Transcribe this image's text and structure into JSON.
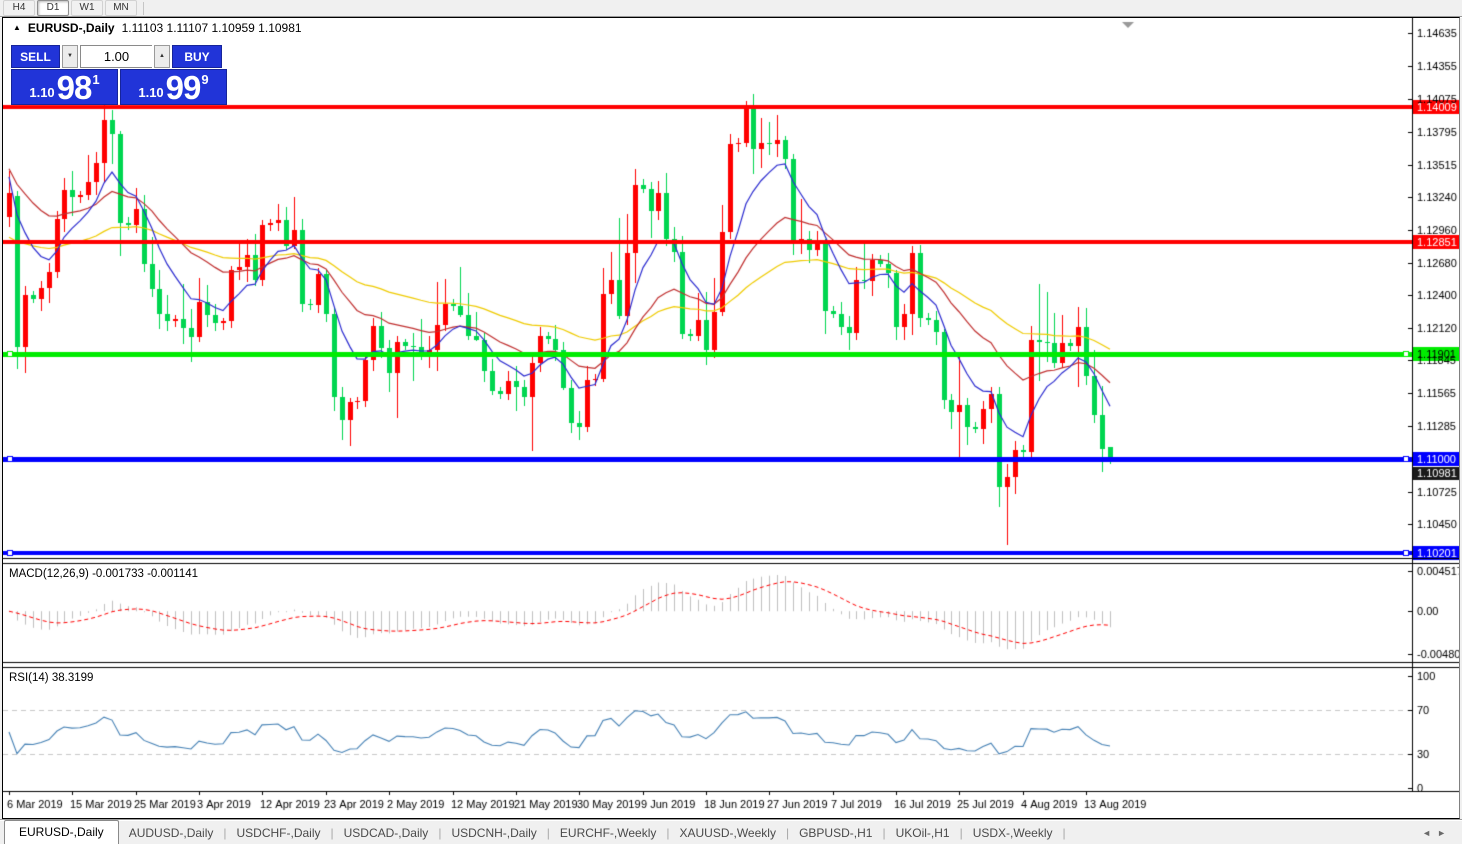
{
  "toolbar": {
    "timeframes": [
      {
        "label": "H4",
        "active": false
      },
      {
        "label": "D1",
        "active": true
      },
      {
        "label": "W1",
        "active": false
      },
      {
        "label": "MN",
        "active": false
      }
    ]
  },
  "chart": {
    "title_symbol": "EURUSD-,Daily",
    "title_ohlc": "1.11103 1.11107 1.10959 1.10981",
    "collapse_arrow_glyph": "▲",
    "trade_panel": {
      "sell_label": "SELL",
      "buy_label": "BUY",
      "volume": "1.00",
      "volume_down_glyph": "▼",
      "volume_up_glyph": "▲",
      "sell_price": {
        "prefix": "1.10",
        "big": "98",
        "sup": "1"
      },
      "buy_price": {
        "prefix": "1.10",
        "big": "99",
        "sup": "9"
      },
      "panel_color": "#2134d8"
    }
  },
  "chart_data": {
    "type": "candlestick",
    "symbol": "EURUSD-,Daily",
    "up_color": "#FF0000",
    "down_color": "#00D650",
    "ylim": [
      1.10175,
      1.1475
    ],
    "price_axis_ticks": [
      1.14635,
      1.14355,
      1.14075,
      1.13795,
      1.13515,
      1.1324,
      1.1296,
      1.1268,
      1.124,
      1.1212,
      1.11845,
      1.11565,
      1.11285,
      1.10725,
      1.1045
    ],
    "hlines": [
      {
        "price": 1.14009,
        "color": "#FF0000",
        "width": 4,
        "label": "1.14009",
        "text_color": "#FFFFFF",
        "markers": false
      },
      {
        "price": 1.12851,
        "color": "#FF0000",
        "width": 4,
        "label": "1.12851",
        "text_color": "#FFFFFF",
        "markers": false
      },
      {
        "price": 1.11901,
        "color": "#00EC00",
        "width": 5,
        "label": "1.11901",
        "text_color": "#000000",
        "markers": true
      },
      {
        "price": 1.11,
        "color": "#0000FF",
        "width": 5,
        "label": "1.11000",
        "text_color": "#FFFFFF",
        "markers": true
      },
      {
        "price": 1.10201,
        "color": "#0000FF",
        "width": 4,
        "label": "1.10201",
        "text_color": "#FFFFFF",
        "markers": true
      }
    ],
    "bid_label": {
      "text": "1.10981",
      "bg": "#1a1a1a",
      "text_color": "#FFFFFF"
    },
    "x_labels": [
      {
        "i": 0,
        "text": "6 Mar 2019"
      },
      {
        "i": 8,
        "text": "15 Mar 2019"
      },
      {
        "i": 16,
        "text": "25 Mar 2019"
      },
      {
        "i": 24,
        "text": "3 Apr 2019"
      },
      {
        "i": 32,
        "text": "12 Apr 2019"
      },
      {
        "i": 40,
        "text": "23 Apr 2019"
      },
      {
        "i": 48,
        "text": "2 May 2019"
      },
      {
        "i": 56,
        "text": "12 May 2019"
      },
      {
        "i": 64,
        "text": "21 May 2019"
      },
      {
        "i": 72,
        "text": "30 May 2019"
      },
      {
        "i": 80,
        "text": "9 Jun 2019"
      },
      {
        "i": 88,
        "text": "18 Jun 2019"
      },
      {
        "i": 96,
        "text": "27 Jun 2019"
      },
      {
        "i": 104,
        "text": "7 Jul 2019"
      },
      {
        "i": 112,
        "text": "16 Jul 2019"
      },
      {
        "i": 120,
        "text": "25 Jul 2019"
      },
      {
        "i": 128,
        "text": "4 Aug 2019"
      },
      {
        "i": 136,
        "text": "13 Aug 2019"
      }
    ],
    "ma_lines": [
      {
        "name": "ma-fast",
        "period": 8,
        "seed": 1.1345,
        "color": "#2B2BD0"
      },
      {
        "name": "ma-mid",
        "period": 22,
        "seed": 1.135,
        "color": "#C03030"
      },
      {
        "name": "ma-slow",
        "period": 50,
        "seed": 1.1288,
        "color": "#EFCB00"
      }
    ],
    "macd": {
      "name": "MACD(12,26,9)",
      "values_text": "-0.001733 -0.001141",
      "fast": 12,
      "slow": 26,
      "signal": 9,
      "bar_color": "#C0C0C0",
      "signal_color": "#FF0000",
      "range": [
        -0.004806,
        0.004517
      ],
      "axis_ticks": [
        {
          "v": 0.004517,
          "text": "0.004517"
        },
        {
          "v": 0,
          "text": "0.00"
        },
        {
          "v": -0.004806,
          "text": "-0.004806"
        }
      ]
    },
    "rsi": {
      "name": "RSI(14)",
      "value_text": "38.3199",
      "period": 14,
      "color": "#4581B5",
      "levels": [
        {
          "v": 100,
          "text": "100",
          "dashed": false
        },
        {
          "v": 70,
          "text": "70",
          "dashed": true
        },
        {
          "v": 30,
          "text": "30",
          "dashed": true
        },
        {
          "v": 0,
          "text": "0",
          "dashed": false
        }
      ]
    },
    "candles": [
      [
        1.1307,
        1.1346,
        1.1298,
        1.1327
      ],
      [
        1.1325,
        1.1329,
        1.1177,
        1.1196
      ],
      [
        1.1196,
        1.1248,
        1.1174,
        1.124
      ],
      [
        1.124,
        1.1244,
        1.1234,
        1.1237
      ],
      [
        1.1237,
        1.1252,
        1.1226,
        1.1246
      ],
      [
        1.1246,
        1.1268,
        1.1234,
        1.126
      ],
      [
        1.126,
        1.1312,
        1.1255,
        1.1305
      ],
      [
        1.1305,
        1.134,
        1.1294,
        1.133
      ],
      [
        1.133,
        1.1346,
        1.1308,
        1.1324
      ],
      [
        1.1324,
        1.1329,
        1.1319,
        1.1326
      ],
      [
        1.1326,
        1.136,
        1.1322,
        1.1337
      ],
      [
        1.1337,
        1.1362,
        1.1325,
        1.1353
      ],
      [
        1.1353,
        1.1405,
        1.1336,
        1.139
      ],
      [
        1.139,
        1.1398,
        1.1352,
        1.1378
      ],
      [
        1.1378,
        1.138,
        1.1273,
        1.1302
      ],
      [
        1.1302,
        1.1307,
        1.1296,
        1.13
      ],
      [
        1.13,
        1.1332,
        1.1294,
        1.1314
      ],
      [
        1.1314,
        1.1326,
        1.126,
        1.1267
      ],
      [
        1.1267,
        1.129,
        1.1239,
        1.1245
      ],
      [
        1.1245,
        1.1262,
        1.1212,
        1.1224
      ],
      [
        1.1224,
        1.124,
        1.1209,
        1.1218
      ],
      [
        1.1218,
        1.1223,
        1.1213,
        1.122
      ],
      [
        1.122,
        1.125,
        1.1199,
        1.1212
      ],
      [
        1.1212,
        1.1228,
        1.1183,
        1.1204
      ],
      [
        1.1204,
        1.1255,
        1.12,
        1.1234
      ],
      [
        1.1234,
        1.1249,
        1.1213,
        1.1223
      ],
      [
        1.1223,
        1.1233,
        1.121,
        1.1216
      ],
      [
        1.1216,
        1.1221,
        1.1211,
        1.1218
      ],
      [
        1.1218,
        1.1265,
        1.1212,
        1.1262
      ],
      [
        1.1262,
        1.1285,
        1.1253,
        1.1264
      ],
      [
        1.1264,
        1.1288,
        1.1251,
        1.1274
      ],
      [
        1.1274,
        1.1292,
        1.1248,
        1.1253
      ],
      [
        1.1253,
        1.1304,
        1.1248,
        1.13
      ],
      [
        1.13,
        1.1305,
        1.1295,
        1.1302
      ],
      [
        1.1302,
        1.1318,
        1.1295,
        1.1304
      ],
      [
        1.1304,
        1.1315,
        1.1278,
        1.1282
      ],
      [
        1.1282,
        1.1324,
        1.128,
        1.1296
      ],
      [
        1.1296,
        1.1305,
        1.1226,
        1.1233
      ],
      [
        1.1233,
        1.1237,
        1.1228,
        1.1232
      ],
      [
        1.1232,
        1.1263,
        1.1225,
        1.1258
      ],
      [
        1.1258,
        1.1262,
        1.1218,
        1.1224
      ],
      [
        1.1224,
        1.123,
        1.1141,
        1.1153
      ],
      [
        1.1153,
        1.1162,
        1.1117,
        1.1134
      ],
      [
        1.1134,
        1.1152,
        1.1111,
        1.1149
      ],
      [
        1.1149,
        1.1153,
        1.1143,
        1.115
      ],
      [
        1.115,
        1.119,
        1.1145,
        1.1185
      ],
      [
        1.1185,
        1.1221,
        1.1176,
        1.1214
      ],
      [
        1.1214,
        1.1226,
        1.1187,
        1.1195
      ],
      [
        1.1195,
        1.1202,
        1.1158,
        1.1174
      ],
      [
        1.1174,
        1.1205,
        1.1135,
        1.12
      ],
      [
        1.12,
        1.1203,
        1.1194,
        1.1197
      ],
      [
        1.1197,
        1.1208,
        1.1167,
        1.1196
      ],
      [
        1.1196,
        1.122,
        1.1185,
        1.119
      ],
      [
        1.119,
        1.1205,
        1.1178,
        1.1193
      ],
      [
        1.1193,
        1.1251,
        1.1175,
        1.1215
      ],
      [
        1.1215,
        1.1254,
        1.121,
        1.1233
      ],
      [
        1.1233,
        1.1237,
        1.1227,
        1.1231
      ],
      [
        1.1231,
        1.1264,
        1.1221,
        1.1223
      ],
      [
        1.1223,
        1.1242,
        1.1202,
        1.1205
      ],
      [
        1.1205,
        1.1226,
        1.1201,
        1.1202
      ],
      [
        1.1202,
        1.1208,
        1.1166,
        1.1175
      ],
      [
        1.1175,
        1.1186,
        1.1155,
        1.1158
      ],
      [
        1.1158,
        1.1162,
        1.1152,
        1.1156
      ],
      [
        1.1156,
        1.1175,
        1.115,
        1.1167
      ],
      [
        1.1167,
        1.118,
        1.1142,
        1.1162
      ],
      [
        1.1162,
        1.1168,
        1.1146,
        1.1153
      ],
      [
        1.1153,
        1.1188,
        1.1107,
        1.1182
      ],
      [
        1.1182,
        1.1213,
        1.1175,
        1.1205
      ],
      [
        1.1205,
        1.1209,
        1.1199,
        1.1203
      ],
      [
        1.1203,
        1.1215,
        1.1184,
        1.1193
      ],
      [
        1.1193,
        1.12,
        1.1159,
        1.1161
      ],
      [
        1.1161,
        1.1168,
        1.1123,
        1.1131
      ],
      [
        1.1131,
        1.1141,
        1.1116,
        1.1128
      ],
      [
        1.1128,
        1.118,
        1.1124,
        1.1168
      ],
      [
        1.1168,
        1.1173,
        1.1163,
        1.1169
      ],
      [
        1.1169,
        1.1263,
        1.1166,
        1.1241
      ],
      [
        1.1241,
        1.1277,
        1.1233,
        1.1253
      ],
      [
        1.1253,
        1.1306,
        1.122,
        1.1222
      ],
      [
        1.1222,
        1.1309,
        1.1214,
        1.1276
      ],
      [
        1.1276,
        1.1348,
        1.1251,
        1.1334
      ],
      [
        1.1334,
        1.1339,
        1.1327,
        1.1331
      ],
      [
        1.1331,
        1.1337,
        1.1289,
        1.1312
      ],
      [
        1.1312,
        1.1338,
        1.1305,
        1.1327
      ],
      [
        1.1327,
        1.1344,
        1.1282,
        1.1288
      ],
      [
        1.1288,
        1.1298,
        1.1268,
        1.1277
      ],
      [
        1.1277,
        1.1291,
        1.1203,
        1.1207
      ],
      [
        1.1207,
        1.1211,
        1.1201,
        1.1205
      ],
      [
        1.1205,
        1.1242,
        1.1201,
        1.1219
      ],
      [
        1.1219,
        1.1243,
        1.1181,
        1.1193
      ],
      [
        1.1193,
        1.1255,
        1.1187,
        1.1226
      ],
      [
        1.1226,
        1.1317,
        1.1222,
        1.1294
      ],
      [
        1.1294,
        1.1378,
        1.1288,
        1.1369
      ],
      [
        1.1369,
        1.1374,
        1.1362,
        1.137
      ],
      [
        1.137,
        1.1406,
        1.1367,
        1.14
      ],
      [
        1.14,
        1.1412,
        1.1344,
        1.1365
      ],
      [
        1.1365,
        1.1391,
        1.1348,
        1.137
      ],
      [
        1.137,
        1.1388,
        1.136,
        1.1369
      ],
      [
        1.1369,
        1.1394,
        1.1358,
        1.1373
      ],
      [
        1.1373,
        1.1376,
        1.1348,
        1.1356
      ],
      [
        1.1356,
        1.1361,
        1.1275,
        1.1285
      ],
      [
        1.1285,
        1.1322,
        1.1275,
        1.1288
      ],
      [
        1.1288,
        1.1295,
        1.1268,
        1.1279
      ],
      [
        1.1279,
        1.1295,
        1.1274,
        1.1285
      ],
      [
        1.1285,
        1.1288,
        1.1207,
        1.1227
      ],
      [
        1.1227,
        1.1231,
        1.1221,
        1.1224
      ],
      [
        1.1224,
        1.1234,
        1.1206,
        1.1213
      ],
      [
        1.1213,
        1.1222,
        1.1193,
        1.1208
      ],
      [
        1.1208,
        1.1264,
        1.1202,
        1.1253
      ],
      [
        1.1253,
        1.1286,
        1.1245,
        1.1252
      ],
      [
        1.1252,
        1.1275,
        1.1239,
        1.127
      ],
      [
        1.127,
        1.1274,
        1.1264,
        1.1267
      ],
      [
        1.1267,
        1.1276,
        1.1246,
        1.1259
      ],
      [
        1.1259,
        1.1262,
        1.1202,
        1.1213
      ],
      [
        1.1213,
        1.1233,
        1.1202,
        1.1224
      ],
      [
        1.1224,
        1.1282,
        1.1206,
        1.1276
      ],
      [
        1.1276,
        1.1283,
        1.1213,
        1.1221
      ],
      [
        1.1221,
        1.1225,
        1.1215,
        1.1219
      ],
      [
        1.1219,
        1.1227,
        1.1198,
        1.1209
      ],
      [
        1.1209,
        1.1211,
        1.1143,
        1.1151
      ],
      [
        1.1151,
        1.1156,
        1.1126,
        1.114
      ],
      [
        1.114,
        1.1187,
        1.1101,
        1.1146
      ],
      [
        1.1146,
        1.1152,
        1.1112,
        1.1128
      ],
      [
        1.1128,
        1.1132,
        1.1123,
        1.1126
      ],
      [
        1.1126,
        1.115,
        1.1113,
        1.1143
      ],
      [
        1.1143,
        1.1162,
        1.1131,
        1.1156
      ],
      [
        1.1156,
        1.1162,
        1.106,
        1.1076
      ],
      [
        1.1076,
        1.1096,
        1.1027,
        1.1085
      ],
      [
        1.1085,
        1.1116,
        1.1071,
        1.1108
      ],
      [
        1.1108,
        1.1112,
        1.1102,
        1.1106
      ],
      [
        1.1106,
        1.1214,
        1.1101,
        1.1202
      ],
      [
        1.1202,
        1.125,
        1.1167,
        1.12
      ],
      [
        1.12,
        1.1243,
        1.1183,
        1.1199
      ],
      [
        1.1199,
        1.1225,
        1.1178,
        1.1182
      ],
      [
        1.1182,
        1.1223,
        1.1178,
        1.1199
      ],
      [
        1.1199,
        1.1203,
        1.1193,
        1.1197
      ],
      [
        1.1197,
        1.123,
        1.1162,
        1.1213
      ],
      [
        1.1213,
        1.1229,
        1.1163,
        1.1171
      ],
      [
        1.1171,
        1.1193,
        1.1131,
        1.1138
      ],
      [
        1.1138,
        1.1163,
        1.109,
        1.1109
      ],
      [
        1.11103,
        1.11107,
        1.10959,
        1.10981
      ]
    ]
  },
  "tabbar": {
    "tabs": [
      {
        "label": "EURUSD-,Daily",
        "active": true
      },
      {
        "label": "AUDUSD-,Daily",
        "active": false
      },
      {
        "label": "USDCHF-,Daily",
        "active": false
      },
      {
        "label": "USDCAD-,Daily",
        "active": false
      },
      {
        "label": "USDCNH-,Daily",
        "active": false
      },
      {
        "label": "EURCHF-,Weekly",
        "active": false
      },
      {
        "label": "XAUUSD-,Weekly",
        "active": false
      },
      {
        "label": "GBPUSD-,H1",
        "active": false
      },
      {
        "label": "UKOil-,H1",
        "active": false
      },
      {
        "label": "USDX-,Weekly",
        "active": false
      }
    ],
    "scroll_left_glyph": "◄",
    "scroll_right_glyph": "►"
  }
}
